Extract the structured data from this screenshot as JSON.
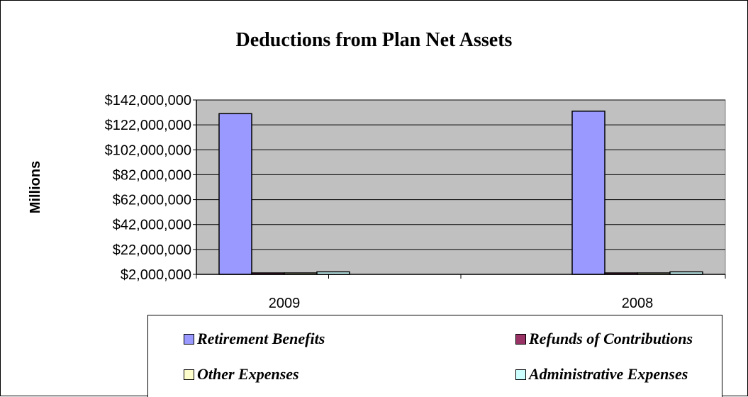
{
  "chart_data": {
    "type": "bar",
    "title": "Deductions from Plan Net Assets",
    "ylabel": "Millions",
    "xlabel": "",
    "categories": [
      "2009",
      "2008"
    ],
    "ylim": [
      2000000,
      142000000
    ],
    "yticks": [
      2000000,
      22000000,
      42000000,
      62000000,
      82000000,
      102000000,
      122000000,
      142000000
    ],
    "ytick_labels": [
      "$2,000,000",
      "$22,000,000",
      "$42,000,000",
      "$62,000,000",
      "$82,000,000",
      "$102,000,000",
      "$122,000,000",
      "$142,000,000"
    ],
    "grid": true,
    "legend_position": "bottom",
    "plot_background": "#c0c0c0",
    "series": [
      {
        "name": "Retirement Benefits",
        "color": "#9999ff",
        "values": [
          131000000,
          133000000
        ]
      },
      {
        "name": "Refunds of Contributions",
        "color": "#993366",
        "values": [
          3000000,
          3000000
        ]
      },
      {
        "name": "Other Expenses",
        "color": "#ffffcc",
        "values": [
          2000000,
          2000000
        ]
      },
      {
        "name": "Administrative Expenses",
        "color": "#ccffff",
        "values": [
          4000000,
          4000000
        ]
      }
    ]
  }
}
